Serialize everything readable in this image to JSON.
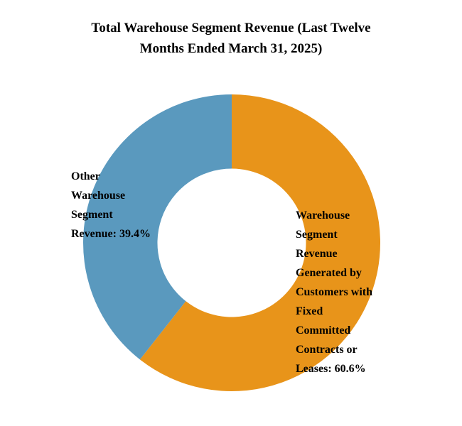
{
  "title": "Total Warehouse Segment Revenue (Last Twelve\nMonths Ended March 31, 2025)",
  "chart_data": {
    "type": "pie",
    "subtype": "donut",
    "title": "Total Warehouse Segment Revenue (Last Twelve Months Ended March 31, 2025)",
    "start_angle_deg": 0,
    "direction": "clockwise",
    "inner_radius_ratio": 0.5,
    "legend_position": "none",
    "background": "#FFFFFF",
    "segments": [
      {
        "slug": "fixed-committed-contracts",
        "label": "Warehouse Segment Revenue Generated by Customers with Fixed Committed Contracts or Leases",
        "value": 60.6,
        "unit": "%",
        "color": "#E8941A",
        "callout": "Warehouse\nSegment\nRevenue\nGenerated by\nCustomers with\nFixed\nCommitted\nContracts or\nLeases: 60.6%"
      },
      {
        "slug": "other-warehouse-revenue",
        "label": "Other Warehouse Segment Revenue",
        "value": 39.4,
        "unit": "%",
        "color": "#5A99BE",
        "callout": "Other\nWarehouse\nSegment\nRevenue: 39.4%"
      }
    ]
  }
}
